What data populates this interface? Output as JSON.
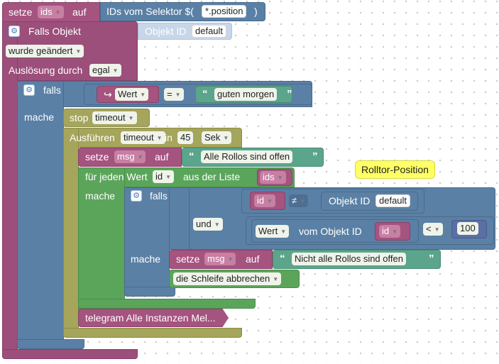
{
  "colors": {
    "purple": "#9b4f7a",
    "blue": "#5b80a5",
    "olive": "#a5a55b",
    "green": "#5ba55b",
    "teal": "#5ba58c",
    "comment_yellow": "#ffff66"
  },
  "header": {
    "setze": "setze",
    "var": "ids",
    "auf": "auf",
    "selector_text": "IDs vom Selektor $(",
    "selector_value": "*.position",
    "selector_close": ")"
  },
  "trigger": {
    "falls_objekt": "Falls Objekt",
    "objekt_id": "Objekt ID",
    "objekt_default": "default",
    "changed": "wurde geändert",
    "ausloesung": "Auslösung durch",
    "ausloesung_value": "egal"
  },
  "if1": {
    "falls": "falls",
    "mache": "mache",
    "wert_icon": "↪",
    "wert": "Wert",
    "op": "=",
    "quote_open": "“",
    "quote_close": "”",
    "text": "guten morgen"
  },
  "stop": {
    "label": "stop",
    "value": "timeout"
  },
  "timeout": {
    "ausfuehren": "Ausführen",
    "name": "timeout",
    "in": "in",
    "delay": "45",
    "unit": "Sek"
  },
  "setmsg1": {
    "setze": "setze",
    "var": "msg",
    "auf": "auf",
    "text": "Alle Rollos sind offen"
  },
  "foreach": {
    "fuer_jeden_wert": "für jeden Wert",
    "var": "id",
    "aus_der_liste": "aus der Liste",
    "list": "ids",
    "mache": "mache"
  },
  "comment": {
    "text": "Rolltor-Position"
  },
  "if2": {
    "falls": "falls",
    "mache": "mache",
    "id": "id",
    "neq": "≠",
    "objekt_id": "Objekt ID",
    "objekt_default": "default",
    "und": "und",
    "wert": "Wert",
    "vom_objekt_id": "vom Objekt ID",
    "id2": "id",
    "lt": "<",
    "number": "100"
  },
  "setmsg2": {
    "setze": "setze",
    "var": "msg",
    "auf": "auf",
    "text": "Nicht alle Rollos sind offen"
  },
  "break_loop": {
    "label": "die Schleife abbrechen"
  },
  "telegram": {
    "label": "telegram Alle Instanzen Mel..."
  }
}
